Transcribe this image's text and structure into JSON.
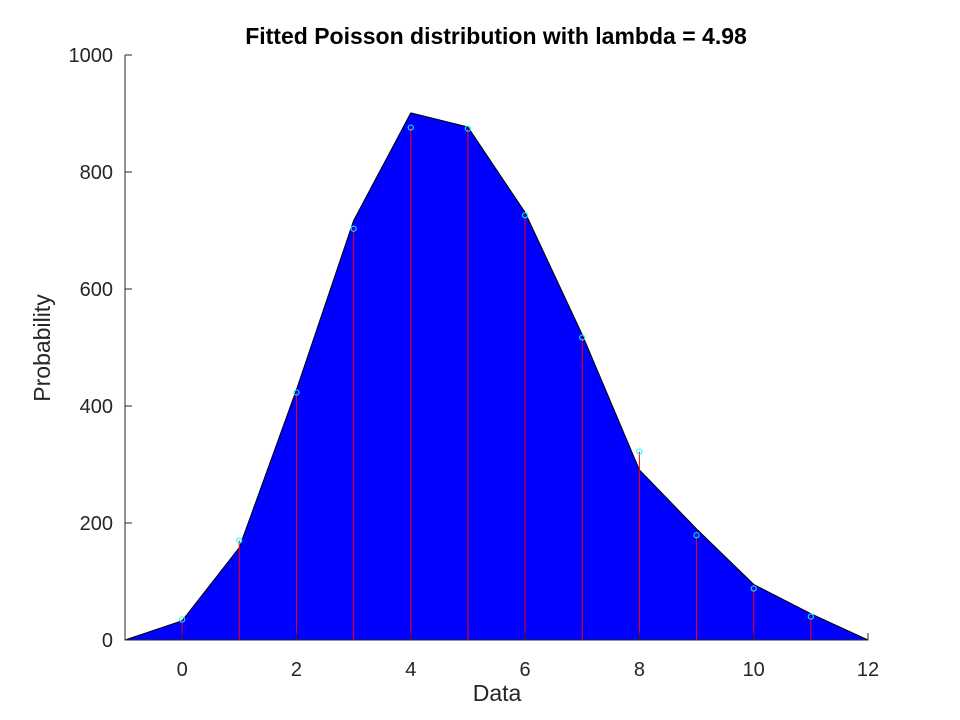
{
  "chart_data": {
    "type": "area",
    "title": "Fitted Poisson distribution with lambda = 4.98",
    "xlabel": "Data",
    "ylabel": "Probability",
    "xlim": [
      -1,
      12
    ],
    "ylim": [
      0,
      1000
    ],
    "x_ticks": [
      0,
      2,
      4,
      6,
      8,
      10,
      12
    ],
    "y_ticks": [
      0,
      200,
      400,
      600,
      800,
      1000
    ],
    "grid": false,
    "fitted_curve": {
      "x": [
        -1,
        0,
        1,
        2,
        3,
        4,
        5,
        6,
        7,
        8,
        9,
        10,
        11,
        12
      ],
      "y": [
        0,
        33,
        158,
        428,
        717,
        901,
        877,
        731,
        522,
        291,
        190,
        95,
        45,
        0
      ],
      "fill_color": "#0000ff",
      "edge_color": "#000000"
    },
    "observed_counts": {
      "x": [
        0,
        1,
        2,
        3,
        4,
        5,
        6,
        7,
        8,
        9,
        10,
        11
      ],
      "y": [
        35,
        170,
        423,
        703,
        876,
        874,
        726,
        517,
        322,
        179,
        88,
        40
      ],
      "stem_color": "#ff0000",
      "marker_color": "#00ffff",
      "marker": "circle"
    }
  }
}
